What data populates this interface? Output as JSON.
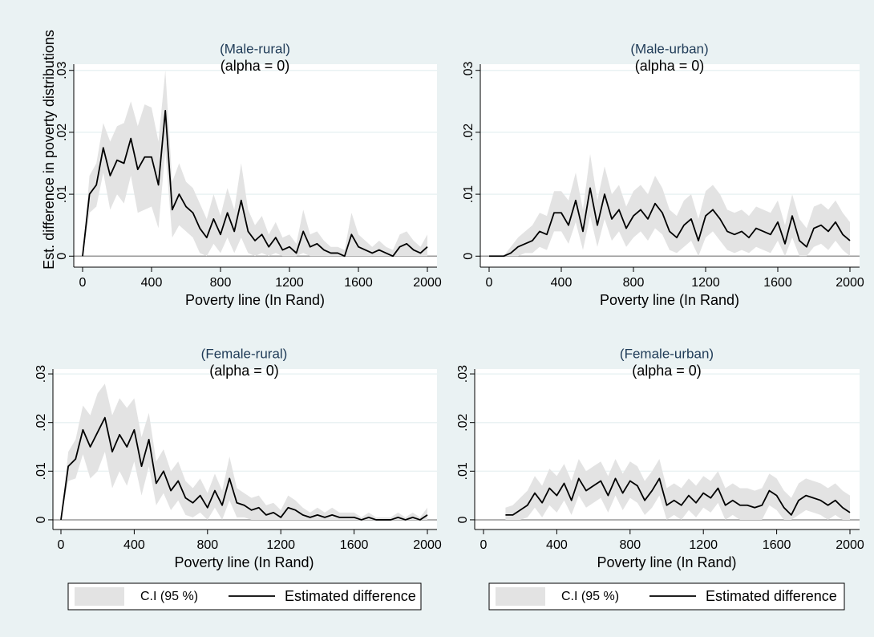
{
  "chart_data": [
    {
      "type": "line",
      "title": "(Male-rural)",
      "subtitle": "(alpha = 0)",
      "xlabel": "Poverty line (In Rand)",
      "ylabel": "Est. difference in poverty distributions",
      "xlim": [
        0,
        2000
      ],
      "xticks": [
        0,
        400,
        800,
        1200,
        1600,
        2000
      ],
      "ylim": [
        -0.001,
        0.031
      ],
      "yticks": [
        0,
        {
          "value": 0.01,
          "label": ".01"
        },
        {
          "value": 0.02,
          "label": ".02"
        },
        {
          "value": 0.03,
          "label": ".03"
        }
      ],
      "grid": true,
      "legend": false,
      "x": [
        0,
        40,
        80,
        120,
        160,
        200,
        240,
        280,
        320,
        360,
        400,
        440,
        480,
        520,
        560,
        600,
        640,
        680,
        720,
        760,
        800,
        840,
        880,
        920,
        960,
        1000,
        1040,
        1080,
        1120,
        1160,
        1200,
        1240,
        1280,
        1320,
        1360,
        1400,
        1440,
        1480,
        1520,
        1560,
        1600,
        1640,
        1680,
        1720,
        1760,
        1800,
        1840,
        1880,
        1920,
        1960,
        2000
      ],
      "series": [
        {
          "color": "#e3e3e3",
          "upper": [
            0,
            0.013,
            0.015,
            0.0215,
            0.0185,
            0.021,
            0.0215,
            0.025,
            0.021,
            0.0245,
            0.024,
            0.0185,
            0.03,
            0.012,
            0.015,
            0.012,
            0.011,
            0.0085,
            0.006,
            0.01,
            0.0065,
            0.011,
            0.0075,
            0.015,
            0.0075,
            0.005,
            0.0065,
            0.0035,
            0.0055,
            0.003,
            0.0035,
            0.002,
            0.0075,
            0.0035,
            0.004,
            0.0025,
            0.0015,
            0.0015,
            0.001,
            0.007,
            0.0035,
            0.0025,
            0.0015,
            0.0025,
            0.0015,
            0.001,
            0.0035,
            0.004,
            0.0025,
            0.0015,
            0.0035
          ],
          "lower": [
            0,
            0.007,
            0.008,
            0.0135,
            0.0075,
            0.01,
            0.0085,
            0.013,
            0.007,
            0.0075,
            0.008,
            0.0045,
            0.017,
            0.003,
            0.005,
            0.004,
            0.003,
            0.0005,
            0,
            0.002,
            0.0005,
            0.003,
            0.0005,
            0.003,
            0.0005,
            0,
            0.0005,
            0,
            0.0005,
            0,
            0,
            0,
            0.0005,
            0,
            0,
            0,
            0,
            0,
            0,
            0,
            0,
            0,
            0,
            0,
            0,
            0,
            0,
            0,
            0,
            0,
            0
          ]
        },
        {
          "color": "#000000",
          "values": [
            0,
            0.01,
            0.0115,
            0.0175,
            0.013,
            0.0155,
            0.015,
            0.019,
            0.014,
            0.016,
            0.016,
            0.0115,
            0.0235,
            0.0075,
            0.01,
            0.008,
            0.007,
            0.0045,
            0.003,
            0.006,
            0.0035,
            0.007,
            0.004,
            0.009,
            0.004,
            0.0025,
            0.0035,
            0.0015,
            0.003,
            0.001,
            0.0015,
            0.0005,
            0.004,
            0.0015,
            0.002,
            0.001,
            0.0005,
            0.0005,
            0,
            0.0035,
            0.0015,
            0.001,
            0.0005,
            0.001,
            0.0005,
            0,
            0.0015,
            0.002,
            0.001,
            0.0005,
            0.0015
          ]
        }
      ]
    },
    {
      "type": "line",
      "title": "(Male-urban)",
      "subtitle": "(alpha = 0)",
      "xlabel": "Poverty line (In Rand)",
      "xlim": [
        0,
        2000
      ],
      "xticks": [
        0,
        400,
        800,
        1200,
        1600,
        2000
      ],
      "ylim": [
        -0.001,
        0.031
      ],
      "yticks": [
        0,
        {
          "value": 0.01,
          "label": ".01"
        },
        {
          "value": 0.02,
          "label": ".02"
        },
        {
          "value": 0.03,
          "label": ".03"
        }
      ],
      "grid": true,
      "legend": false,
      "x": [
        0,
        40,
        80,
        120,
        160,
        200,
        240,
        280,
        320,
        360,
        400,
        440,
        480,
        520,
        560,
        600,
        640,
        680,
        720,
        760,
        800,
        840,
        880,
        920,
        960,
        1000,
        1040,
        1080,
        1120,
        1160,
        1200,
        1240,
        1280,
        1320,
        1360,
        1400,
        1440,
        1480,
        1520,
        1560,
        1600,
        1640,
        1680,
        1720,
        1760,
        1800,
        1840,
        1880,
        1920,
        1960,
        2000
      ],
      "series": [
        {
          "color": "#e3e3e3",
          "upper": [
            0,
            0,
            0,
            0.0015,
            0.003,
            0.004,
            0.005,
            0.007,
            0.0065,
            0.0105,
            0.0105,
            0.009,
            0.0135,
            0.0075,
            0.0165,
            0.009,
            0.0145,
            0.01,
            0.0115,
            0.008,
            0.0105,
            0.0115,
            0.01,
            0.013,
            0.011,
            0.0075,
            0.0065,
            0.009,
            0.01,
            0.006,
            0.0105,
            0.0115,
            0.01,
            0.0075,
            0.007,
            0.0075,
            0.0065,
            0.008,
            0.0075,
            0.007,
            0.009,
            0.005,
            0.01,
            0.006,
            0.0045,
            0.008,
            0.0085,
            0.0075,
            0.009,
            0.007,
            0.0055
          ],
          "lower": [
            0,
            0,
            0,
            0,
            0,
            0.0005,
            0.0005,
            0.0015,
            0.001,
            0.004,
            0.004,
            0.002,
            0.0055,
            0.001,
            0.0065,
            0.0015,
            0.006,
            0.0025,
            0.004,
            0.0015,
            0.003,
            0.004,
            0.0025,
            0.0045,
            0.0035,
            0.001,
            0.0005,
            0.0015,
            0.0025,
            0,
            0.003,
            0.004,
            0.0025,
            0.001,
            0.0005,
            0.001,
            0.0005,
            0.0015,
            0.001,
            0.0005,
            0.0025,
            0,
            0.003,
            0,
            0,
            0.0015,
            0.002,
            0.001,
            0.0025,
            0.001,
            0
          ]
        },
        {
          "color": "#000000",
          "values": [
            0,
            0,
            0,
            0.0005,
            0.0015,
            0.002,
            0.0025,
            0.004,
            0.0035,
            0.007,
            0.007,
            0.005,
            0.009,
            0.004,
            0.011,
            0.005,
            0.01,
            0.006,
            0.0075,
            0.0045,
            0.0065,
            0.0075,
            0.006,
            0.0085,
            0.007,
            0.004,
            0.003,
            0.005,
            0.006,
            0.0025,
            0.0065,
            0.0075,
            0.006,
            0.004,
            0.0035,
            0.004,
            0.003,
            0.0045,
            0.004,
            0.0035,
            0.0055,
            0.002,
            0.0065,
            0.0025,
            0.0015,
            0.0045,
            0.005,
            0.004,
            0.0055,
            0.0035,
            0.0025
          ]
        }
      ]
    },
    {
      "type": "line",
      "title": "(Female-rural)",
      "subtitle": "(alpha = 0)",
      "xlabel": "Poverty line (In Rand)",
      "xlim": [
        0,
        2000
      ],
      "xticks": [
        0,
        400,
        800,
        1200,
        1600,
        2000
      ],
      "ylim": [
        -0.001,
        0.031
      ],
      "yticks": [
        0,
        {
          "value": 0.01,
          "label": ".01"
        },
        {
          "value": 0.02,
          "label": ".02"
        },
        {
          "value": 0.03,
          "label": ".03"
        }
      ],
      "grid": true,
      "legend": true,
      "x": [
        0,
        40,
        80,
        120,
        160,
        200,
        240,
        280,
        320,
        360,
        400,
        440,
        480,
        520,
        560,
        600,
        640,
        680,
        720,
        760,
        800,
        840,
        880,
        920,
        960,
        1000,
        1040,
        1080,
        1120,
        1160,
        1200,
        1240,
        1280,
        1320,
        1360,
        1400,
        1440,
        1480,
        1520,
        1560,
        1600,
        1640,
        1680,
        1720,
        1760,
        1800,
        1840,
        1880,
        1920,
        1960,
        2000
      ],
      "series": [
        {
          "name": "C.I (95 %)",
          "color": "#e3e3e3",
          "upper": [
            0,
            0.014,
            0.0165,
            0.0235,
            0.0215,
            0.026,
            0.028,
            0.0215,
            0.025,
            0.023,
            0.025,
            0.017,
            0.022,
            0.012,
            0.0145,
            0.01,
            0.012,
            0.008,
            0.0065,
            0.0085,
            0.0055,
            0.0095,
            0.006,
            0.013,
            0.0065,
            0.0055,
            0.0045,
            0.005,
            0.003,
            0.0035,
            0.002,
            0.005,
            0.004,
            0.0025,
            0.0015,
            0.0025,
            0.0015,
            0.0025,
            0.0015,
            0.0015,
            0.0015,
            0.0005,
            0.0015,
            0.0005,
            0.0005,
            0.0005,
            0.0015,
            0.0005,
            0.0015,
            0.0005,
            0.0025
          ],
          "lower": [
            0,
            0.008,
            0.0085,
            0.0135,
            0.0085,
            0.01,
            0.014,
            0.0065,
            0.01,
            0.007,
            0.012,
            0.005,
            0.011,
            0.003,
            0.0055,
            0.002,
            0.004,
            0.001,
            0.0005,
            0.0015,
            0,
            0.0025,
            0,
            0.004,
            0.0005,
            0.0005,
            0,
            0,
            0,
            0,
            0,
            0,
            0,
            0,
            0,
            0,
            0,
            0,
            0,
            0,
            0,
            0,
            0,
            0,
            0,
            0,
            0,
            0,
            0,
            0,
            0
          ]
        },
        {
          "name": "Estimated difference",
          "color": "#000000",
          "values": [
            0,
            0.011,
            0.0125,
            0.0185,
            0.015,
            0.018,
            0.021,
            0.014,
            0.0175,
            0.015,
            0.0185,
            0.011,
            0.0165,
            0.0075,
            0.01,
            0.006,
            0.008,
            0.0045,
            0.0035,
            0.005,
            0.0025,
            0.006,
            0.003,
            0.0085,
            0.0035,
            0.003,
            0.002,
            0.0025,
            0.001,
            0.0015,
            0.0005,
            0.0025,
            0.002,
            0.001,
            0.0005,
            0.001,
            0.0005,
            0.001,
            0.0005,
            0.0005,
            0.0005,
            0,
            0.0005,
            0,
            0,
            0,
            0.0005,
            0,
            0.0005,
            0,
            0.001
          ]
        }
      ]
    },
    {
      "type": "line",
      "title": "(Female-urban)",
      "subtitle": "(alpha = 0)",
      "xlabel": "Poverty line (In Rand)",
      "xlim": [
        0,
        2000
      ],
      "xticks": [
        0,
        400,
        800,
        1200,
        1600,
        2000
      ],
      "ylim": [
        -0.001,
        0.031
      ],
      "yticks": [
        0,
        {
          "value": 0.01,
          "label": ".01"
        },
        {
          "value": 0.02,
          "label": ".02"
        },
        {
          "value": 0.03,
          "label": ".03"
        }
      ],
      "grid": true,
      "legend": true,
      "x": [
        0,
        40,
        80,
        120,
        160,
        200,
        240,
        280,
        320,
        360,
        400,
        440,
        480,
        520,
        560,
        600,
        640,
        680,
        720,
        760,
        800,
        840,
        880,
        920,
        960,
        1000,
        1040,
        1080,
        1120,
        1160,
        1200,
        1240,
        1280,
        1320,
        1360,
        1400,
        1440,
        1480,
        1520,
        1560,
        1600,
        1640,
        1680,
        1720,
        1760,
        1800,
        1840,
        1880,
        1920,
        1960,
        2000
      ],
      "series": [
        {
          "name": "C.I (95 %)",
          "color": "#e3e3e3",
          "upper": [
            null,
            null,
            null,
            0.0025,
            0.003,
            0.0045,
            0.006,
            0.009,
            0.007,
            0.0105,
            0.009,
            0.0115,
            0.008,
            0.0125,
            0.01,
            0.011,
            0.012,
            0.009,
            0.0125,
            0.0095,
            0.012,
            0.011,
            0.008,
            0.01,
            0.0125,
            0.0065,
            0.0075,
            0.0065,
            0.0085,
            0.007,
            0.009,
            0.008,
            0.01,
            0.0065,
            0.0075,
            0.0065,
            0.0065,
            0.006,
            0.0065,
            0.0095,
            0.0085,
            0.006,
            0.0045,
            0.0075,
            0.0085,
            0.008,
            0.0075,
            0.0065,
            0.0075,
            0.006,
            0.005
          ],
          "lower": [
            null,
            null,
            null,
            0,
            0,
            0,
            0.0005,
            0.0025,
            0.0005,
            0.003,
            0.0015,
            0.004,
            0.001,
            0.005,
            0.0025,
            0.0035,
            0.0045,
            0.0015,
            0.005,
            0.002,
            0.0045,
            0.0035,
            0.001,
            0.0025,
            0.005,
            0,
            0.001,
            0,
            0.002,
            0.0005,
            0.0025,
            0.0015,
            0.0035,
            0,
            0.001,
            0,
            0,
            0,
            0,
            0.003,
            0.002,
            0,
            0,
            0.001,
            0.002,
            0.0015,
            0.001,
            0,
            0.001,
            0,
            0
          ]
        },
        {
          "name": "Estimated difference",
          "color": "#000000",
          "values": [
            null,
            null,
            null,
            0.001,
            0.001,
            0.002,
            0.003,
            0.0055,
            0.0035,
            0.0065,
            0.005,
            0.0075,
            0.004,
            0.0085,
            0.006,
            0.007,
            0.008,
            0.005,
            0.0085,
            0.0055,
            0.008,
            0.007,
            0.004,
            0.006,
            0.0085,
            0.003,
            0.004,
            0.003,
            0.005,
            0.0035,
            0.0055,
            0.0045,
            0.0065,
            0.003,
            0.004,
            0.003,
            0.003,
            0.0025,
            0.003,
            0.006,
            0.005,
            0.0025,
            0.001,
            0.004,
            0.005,
            0.0045,
            0.004,
            0.003,
            0.004,
            0.0025,
            0.0015
          ]
        }
      ]
    }
  ]
}
